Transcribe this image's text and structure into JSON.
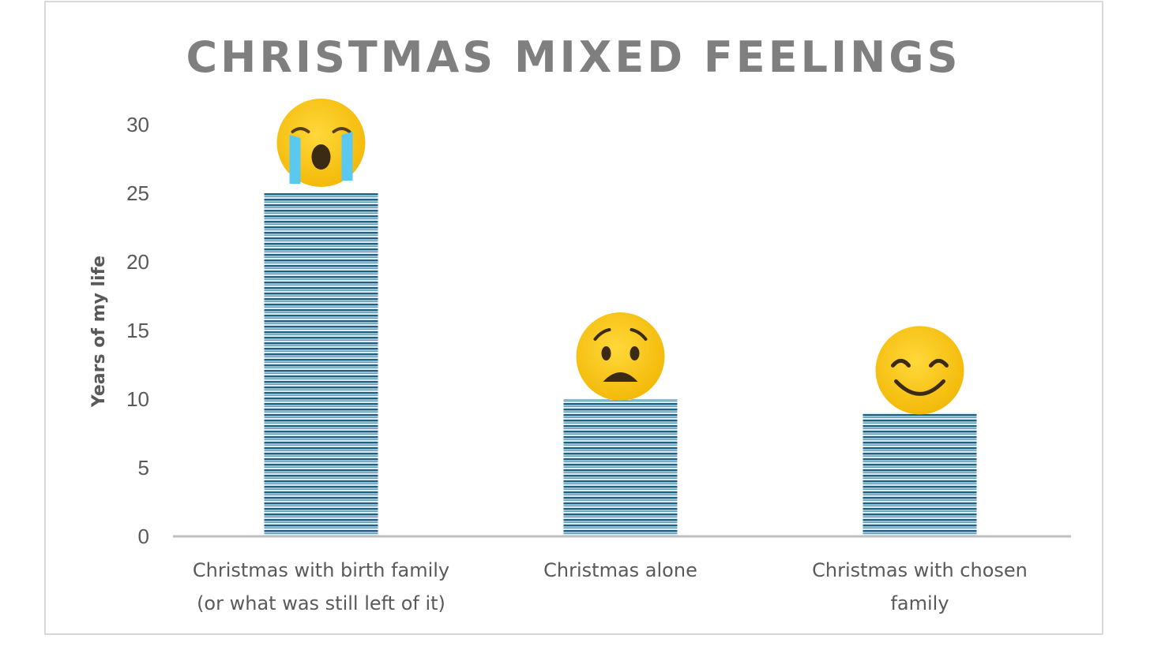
{
  "chart_data": {
    "type": "bar",
    "title": "CHRISTMAS MIXED FEELINGS",
    "ylabel": "Years of my life",
    "xlabel": "",
    "ylim": [
      0,
      30
    ],
    "yticks": [
      "0",
      "5",
      "10",
      "15",
      "20",
      "25",
      "30"
    ],
    "categories": [
      [
        "Christmas with birth family",
        "(or what was still left of it)"
      ],
      [
        "Christmas alone"
      ],
      [
        "Christmas with chosen family"
      ]
    ],
    "category_wrapped": [
      [
        "Christmas with birth family",
        "(or what was still left of it)"
      ],
      [
        "Christmas alone"
      ],
      [
        "Christmas with chosen",
        "family"
      ]
    ],
    "values": [
      25,
      10,
      9
    ],
    "emoji_icons": [
      "loudly-crying-face-icon",
      "worried-frowning-face-icon",
      "smiling-face-icon"
    ],
    "grid": false,
    "colors": {
      "bar_dark": "#1f5f7f",
      "bar_light": "#dbeef5",
      "axis": "#bfbfbf",
      "emoji": "#f7c31a"
    }
  }
}
